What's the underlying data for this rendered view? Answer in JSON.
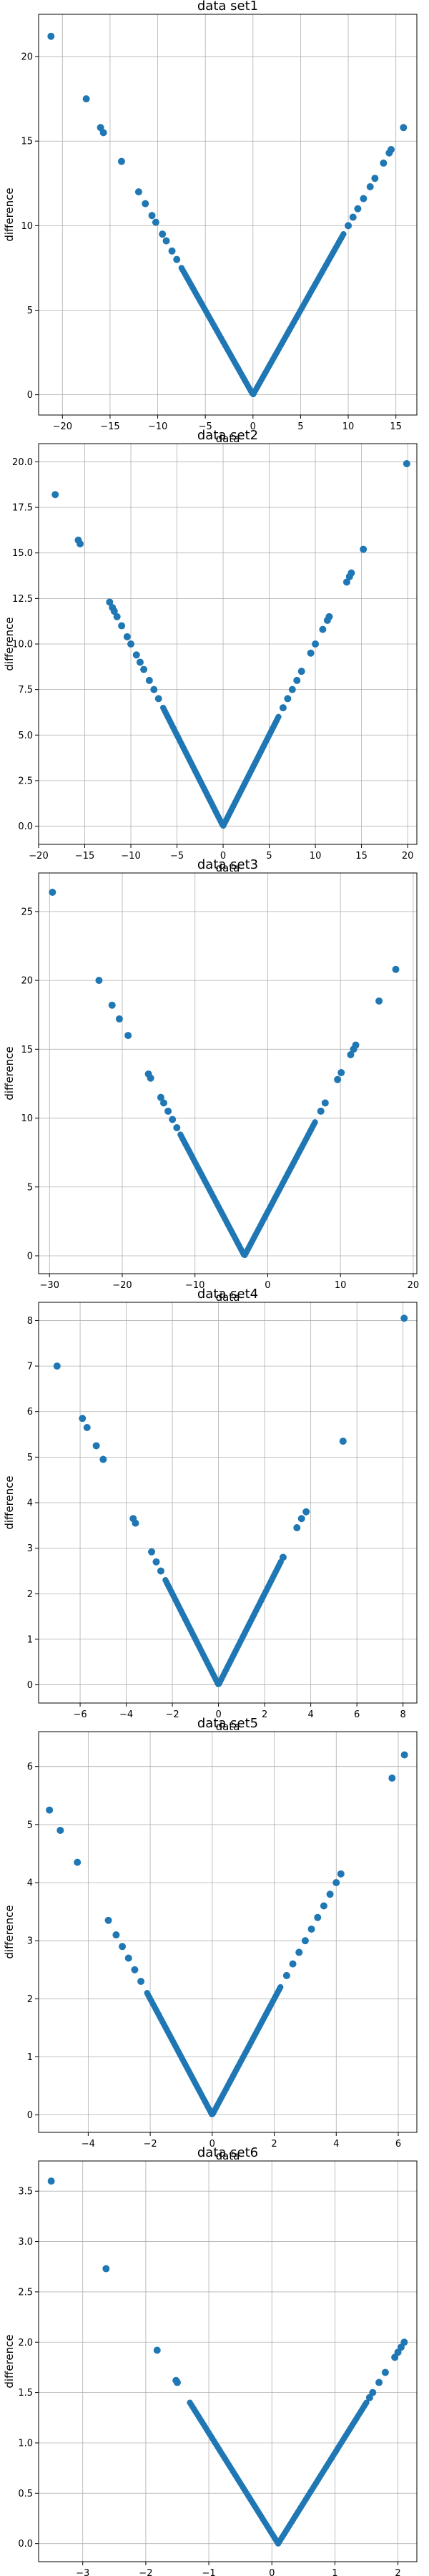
{
  "colors": {
    "points": "#1f77b4",
    "grid": "#b0b0b0",
    "background": "#ffffff"
  },
  "chart_data": [
    {
      "type": "scatter",
      "title": "data set1",
      "xlabel": "data",
      "ylabel": "difference",
      "xlim": [
        -22.5,
        17.2
      ],
      "ylim": [
        -1.2,
        22.5
      ],
      "xticks": [
        -20,
        -15,
        -10,
        -5,
        0,
        5,
        10,
        15
      ],
      "yticks": [
        0,
        5,
        10,
        15,
        20
      ],
      "grid": true,
      "vertex": [
        0,
        0
      ],
      "dense_range": [
        -7.5,
        9.5
      ],
      "points": [
        [
          -21.2,
          21.2
        ],
        [
          -17.5,
          17.5
        ],
        [
          -16.0,
          15.8
        ],
        [
          -15.7,
          15.5
        ],
        [
          -13.8,
          13.8
        ],
        [
          -12.0,
          12.0
        ],
        [
          -11.3,
          11.3
        ],
        [
          -10.6,
          10.6
        ],
        [
          -10.2,
          10.2
        ],
        [
          -9.5,
          9.5
        ],
        [
          -9.1,
          9.1
        ],
        [
          -8.5,
          8.5
        ],
        [
          -8.0,
          8.0
        ],
        [
          10.0,
          10.0
        ],
        [
          10.5,
          10.5
        ],
        [
          11.0,
          11.0
        ],
        [
          11.6,
          11.6
        ],
        [
          12.3,
          12.3
        ],
        [
          12.8,
          12.8
        ],
        [
          13.7,
          13.7
        ],
        [
          14.3,
          14.3
        ],
        [
          14.5,
          14.5
        ],
        [
          15.8,
          15.8
        ]
      ]
    },
    {
      "type": "scatter",
      "title": "data set2",
      "xlabel": "data",
      "ylabel": "difference",
      "xlim": [
        -20.0,
        21.0
      ],
      "ylim": [
        -1.0,
        21.0
      ],
      "xticks": [
        -20,
        -15,
        -10,
        -5,
        0,
        5,
        10,
        15,
        20
      ],
      "yticks": [
        0.0,
        2.5,
        5.0,
        7.5,
        10.0,
        12.5,
        15.0,
        17.5,
        20.0
      ],
      "grid": true,
      "vertex": [
        0,
        0
      ],
      "dense_range": [
        -6.5,
        6.0
      ],
      "points": [
        [
          -18.2,
          18.2
        ],
        [
          -15.7,
          15.7
        ],
        [
          -15.5,
          15.5
        ],
        [
          -12.3,
          12.3
        ],
        [
          -12.0,
          12.0
        ],
        [
          -11.8,
          11.8
        ],
        [
          -11.5,
          11.5
        ],
        [
          -11.0,
          11.0
        ],
        [
          -10.4,
          10.4
        ],
        [
          -10.0,
          10.0
        ],
        [
          -9.4,
          9.4
        ],
        [
          -9.0,
          9.0
        ],
        [
          -8.6,
          8.6
        ],
        [
          -8.0,
          8.0
        ],
        [
          -7.5,
          7.5
        ],
        [
          -7.0,
          7.0
        ],
        [
          6.5,
          6.5
        ],
        [
          7.0,
          7.0
        ],
        [
          7.5,
          7.5
        ],
        [
          8.0,
          8.0
        ],
        [
          8.5,
          8.5
        ],
        [
          9.5,
          9.5
        ],
        [
          10.0,
          10.0
        ],
        [
          10.8,
          10.8
        ],
        [
          11.3,
          11.3
        ],
        [
          11.5,
          11.5
        ],
        [
          13.4,
          13.4
        ],
        [
          13.7,
          13.7
        ],
        [
          13.9,
          13.9
        ],
        [
          15.2,
          15.2
        ],
        [
          19.9,
          19.9
        ]
      ]
    },
    {
      "type": "scatter",
      "title": "data set3",
      "xlabel": "data",
      "ylabel": "difference",
      "xlim": [
        -31.5,
        20.5
      ],
      "ylim": [
        -1.3,
        27.8
      ],
      "xticks": [
        -30,
        -20,
        -10,
        0,
        10,
        20
      ],
      "yticks": [
        0,
        5,
        10,
        15,
        20,
        25
      ],
      "grid": true,
      "vertex": [
        -3.2,
        0
      ],
      "dense_range": [
        -12.0,
        6.5
      ],
      "points": [
        [
          -29.6,
          26.4
        ],
        [
          -23.2,
          20.0
        ],
        [
          -21.4,
          18.2
        ],
        [
          -20.4,
          17.2
        ],
        [
          -19.2,
          16.0
        ],
        [
          -16.4,
          13.2
        ],
        [
          -16.1,
          12.9
        ],
        [
          -14.7,
          11.5
        ],
        [
          -14.3,
          11.1
        ],
        [
          -13.7,
          10.5
        ],
        [
          -13.1,
          9.9
        ],
        [
          -12.5,
          9.3
        ],
        [
          7.3,
          10.5
        ],
        [
          7.9,
          11.1
        ],
        [
          9.6,
          12.8
        ],
        [
          10.1,
          13.3
        ],
        [
          11.4,
          14.6
        ],
        [
          11.8,
          15.0
        ],
        [
          12.1,
          15.3
        ],
        [
          15.3,
          18.5
        ],
        [
          17.6,
          20.8
        ]
      ]
    },
    {
      "type": "scatter",
      "title": "data set4",
      "xlabel": "data",
      "ylabel": "difference",
      "xlim": [
        -7.8,
        8.6
      ],
      "ylim": [
        -0.4,
        8.4
      ],
      "xticks": [
        -6,
        -4,
        -2,
        0,
        2,
        4,
        6,
        8
      ],
      "yticks": [
        0,
        1,
        2,
        3,
        4,
        5,
        6,
        7,
        8
      ],
      "grid": true,
      "vertex": [
        0,
        0
      ],
      "dense_range": [
        -2.3,
        2.7
      ],
      "points": [
        [
          -7.0,
          7.0
        ],
        [
          -5.9,
          5.85
        ],
        [
          -5.7,
          5.65
        ],
        [
          -5.3,
          5.25
        ],
        [
          -5.0,
          4.95
        ],
        [
          -3.7,
          3.65
        ],
        [
          -3.6,
          3.55
        ],
        [
          -2.9,
          2.92
        ],
        [
          -2.7,
          2.7
        ],
        [
          -2.5,
          2.5
        ],
        [
          2.8,
          2.8
        ],
        [
          3.4,
          3.45
        ],
        [
          3.6,
          3.65
        ],
        [
          3.8,
          3.8
        ],
        [
          5.4,
          5.35
        ],
        [
          8.05,
          8.05
        ]
      ]
    },
    {
      "type": "scatter",
      "title": "data set5",
      "xlabel": "data",
      "ylabel": "difference",
      "xlim": [
        -5.6,
        6.6
      ],
      "ylim": [
        -0.3,
        6.6
      ],
      "xticks": [
        -4,
        -2,
        0,
        2,
        4,
        6
      ],
      "yticks": [
        0,
        1,
        2,
        3,
        4,
        5,
        6
      ],
      "grid": true,
      "vertex": [
        0,
        0
      ],
      "dense_range": [
        -2.1,
        2.2
      ],
      "points": [
        [
          -5.25,
          5.25
        ],
        [
          -4.9,
          4.9
        ],
        [
          -4.35,
          4.35
        ],
        [
          -3.35,
          3.35
        ],
        [
          -3.1,
          3.1
        ],
        [
          -2.9,
          2.9
        ],
        [
          -2.7,
          2.7
        ],
        [
          -2.5,
          2.5
        ],
        [
          -2.3,
          2.3
        ],
        [
          2.4,
          2.4
        ],
        [
          2.6,
          2.6
        ],
        [
          2.8,
          2.8
        ],
        [
          3.0,
          3.0
        ],
        [
          3.2,
          3.2
        ],
        [
          3.4,
          3.4
        ],
        [
          3.6,
          3.6
        ],
        [
          3.8,
          3.8
        ],
        [
          4.0,
          4.0
        ],
        [
          4.15,
          4.15
        ],
        [
          5.8,
          5.8
        ],
        [
          6.2,
          6.2
        ]
      ]
    },
    {
      "type": "scatter",
      "title": "data set6",
      "xlabel": "data",
      "ylabel": "difference",
      "xlim": [
        -3.7,
        2.3
      ],
      "ylim": [
        -0.18,
        3.8
      ],
      "xticks": [
        -3,
        -2,
        -1,
        0,
        1,
        2
      ],
      "yticks": [
        0.0,
        0.5,
        1.0,
        1.5,
        2.0,
        2.5,
        3.0,
        3.5
      ],
      "grid": true,
      "vertex": [
        0.1,
        0
      ],
      "dense_range": [
        -1.3,
        1.5
      ],
      "points": [
        [
          -3.5,
          3.6
        ],
        [
          -2.63,
          2.73
        ],
        [
          -1.82,
          1.92
        ],
        [
          -1.52,
          1.62
        ],
        [
          -1.5,
          1.6
        ],
        [
          1.55,
          1.45
        ],
        [
          1.6,
          1.5
        ],
        [
          1.7,
          1.6
        ],
        [
          1.8,
          1.7
        ],
        [
          1.95,
          1.85
        ],
        [
          2.0,
          1.9
        ],
        [
          2.05,
          1.95
        ],
        [
          2.1,
          2.0
        ]
      ]
    }
  ]
}
